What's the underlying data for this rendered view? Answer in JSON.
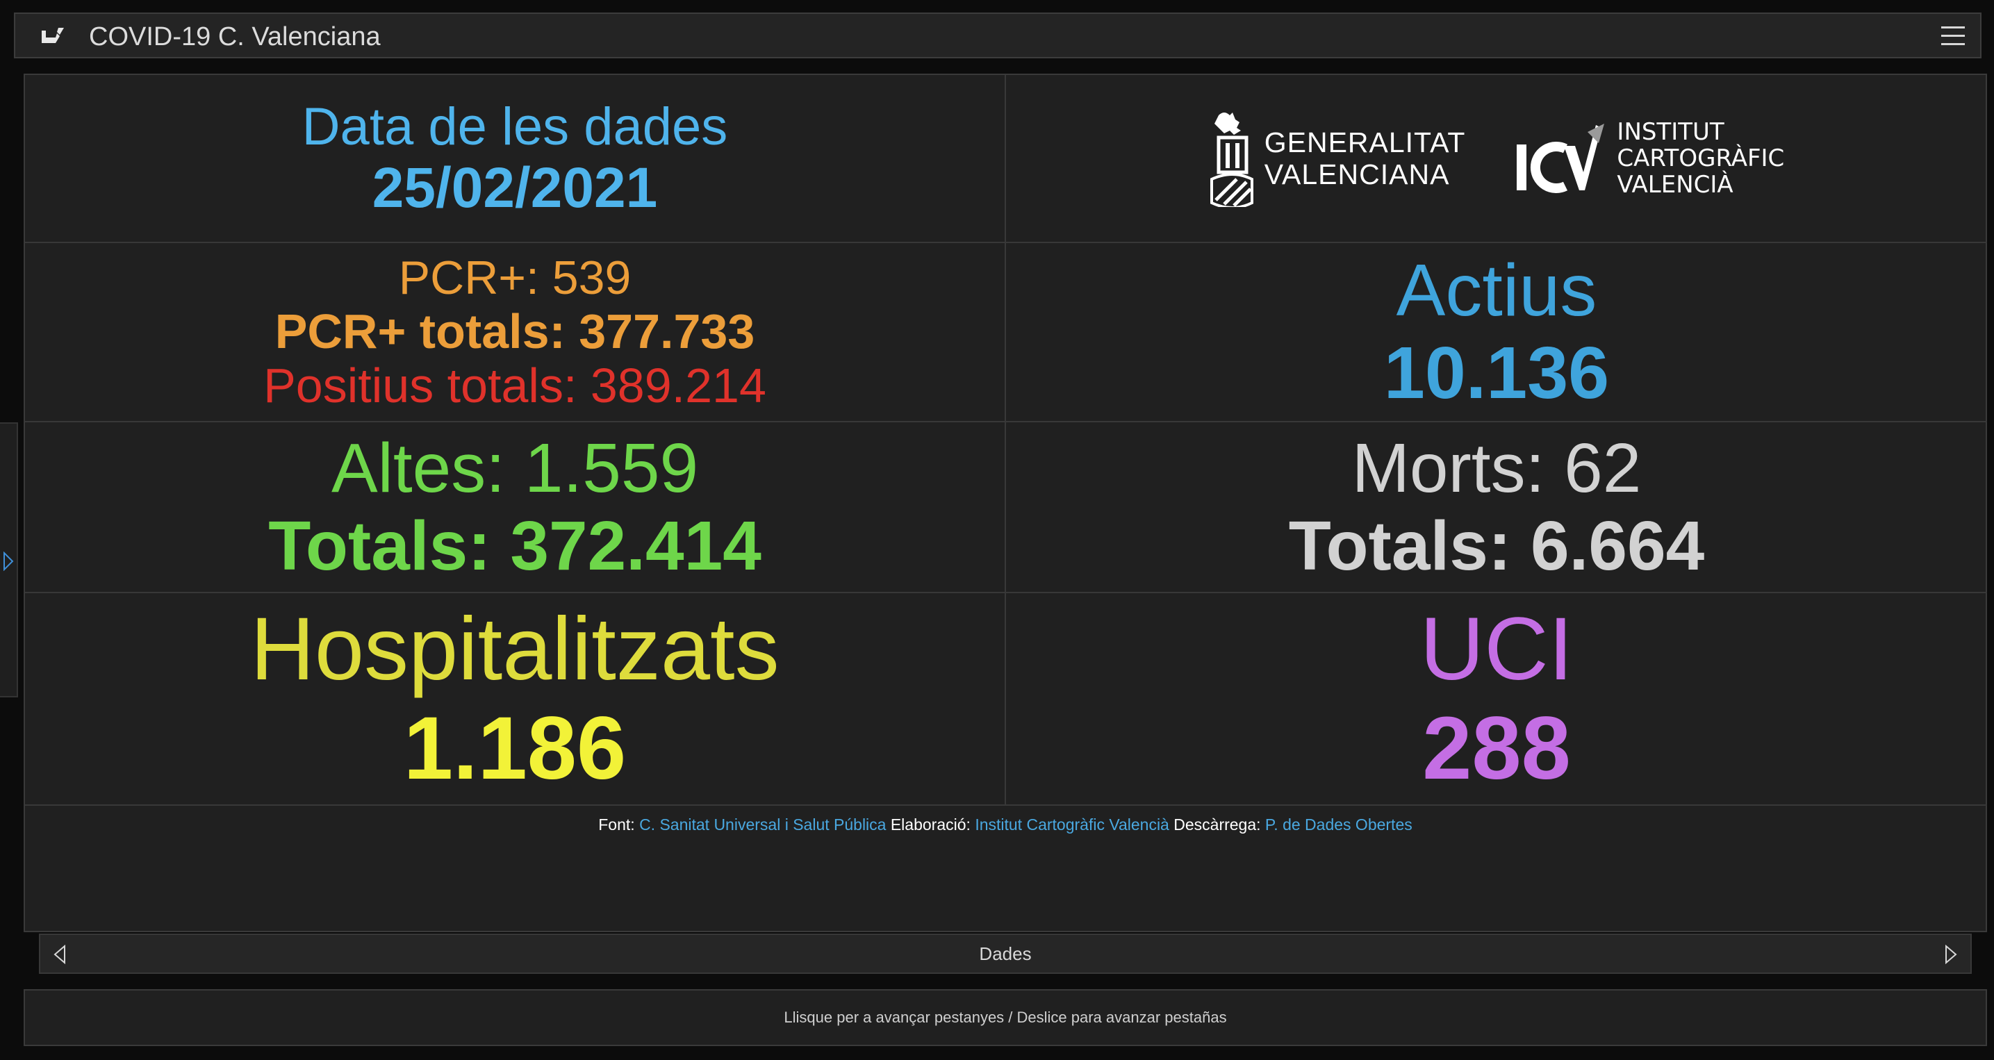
{
  "app": {
    "title": "COVID-19 C. Valenciana"
  },
  "cards": {
    "date": {
      "label": "Data de les dades",
      "value": "25/02/2021"
    },
    "pcr": {
      "daily": "PCR+: 539",
      "totals": "PCR+ totals: 377.733",
      "positius": "Positius totals: 389.214"
    },
    "actius": {
      "label": "Actius",
      "value": "10.136"
    },
    "altes": {
      "daily": "Altes: 1.559",
      "totals": "Totals: 372.414"
    },
    "morts": {
      "daily": "Morts: 62",
      "totals": "Totals: 6.664"
    },
    "hospitalitzats": {
      "label": "Hospitalitzats",
      "value": "1.186"
    },
    "uci": {
      "label": "UCI",
      "value": "288"
    }
  },
  "logos": {
    "gva": {
      "line1": "GENERALITAT",
      "line2": "VALENCIANA"
    },
    "icv": {
      "line1": "INSTITUT",
      "line2": "CARTOGRÀFIC",
      "line3": "VALENCIÀ"
    }
  },
  "footer": {
    "font_label": "Font:",
    "font_link": "C. Sanitat Universal i Salut Pública",
    "elab_label": "Elaboració:",
    "elab_link": "Institut Cartogràfic Valencià",
    "desc_label": "Descàrrega:",
    "desc_link": "P. de Dades Obertes"
  },
  "nav": {
    "label": "Dades"
  },
  "hint": "Llisque per a avançar pestanyes / Deslice para avanzar pestañas",
  "icons": {
    "app": "app-logo-icon",
    "menu": "hamburger-menu-icon",
    "side": "expand-arrow-icon",
    "prev": "prev-arrow-icon",
    "next": "next-arrow-icon"
  },
  "colors": {
    "blue": "#4fb4ec",
    "orange": "#ec9e3a",
    "red": "#e0322b",
    "green": "#6ed64a",
    "grey": "#d2d2d2",
    "yellow": "#f2f238",
    "purple": "#c46ee4",
    "link": "#4aa8e0"
  }
}
